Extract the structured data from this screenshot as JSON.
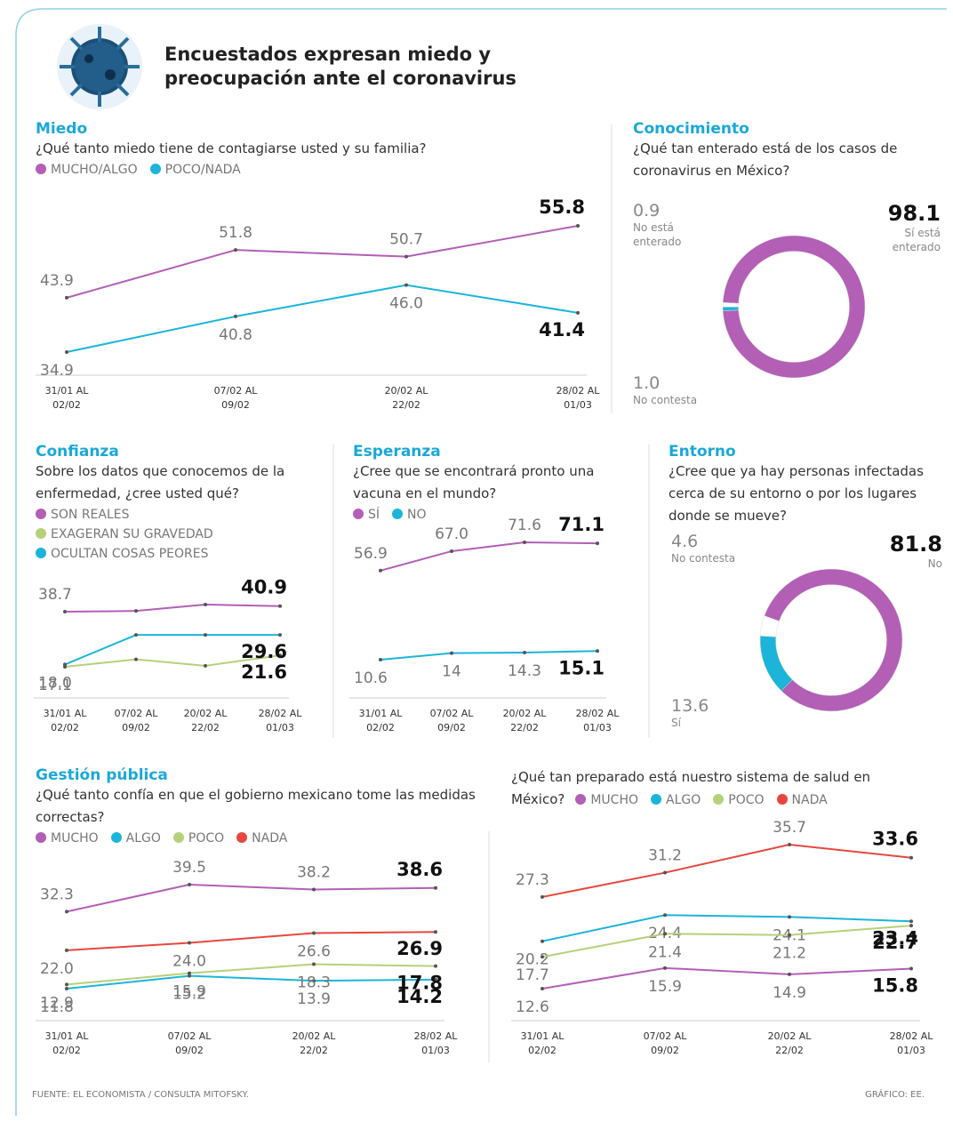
{
  "header": {
    "title": "Encuestados expresan miedo y preocupación ante el coronavirus"
  },
  "chart_data": [
    {
      "type": "line",
      "title": "Miedo",
      "subtitle": "¿Qué tanto miedo tiene de contagiarse usted y su familia?",
      "categories": [
        "31/01 AL 02/02",
        "07/02 AL 09/02",
        "20/02 AL 22/02",
        "28/02 AL 01/03"
      ],
      "series": [
        {
          "name": "MUCHO/ALGO",
          "color": "#b35fb6",
          "values": [
            43.9,
            51.8,
            50.7,
            55.8
          ],
          "value_labels": [
            "43.9",
            "51.8",
            "50.7",
            "55.8"
          ]
        },
        {
          "name": "POCO/NADA",
          "color": "#1cb5d9",
          "values": [
            34.9,
            40.8,
            46.0,
            41.4
          ],
          "value_labels": [
            "34.9",
            "40.8",
            "46.0",
            "41.4"
          ]
        }
      ]
    },
    {
      "type": "donut",
      "title": "Conocimiento",
      "subtitle": "¿Qué tan enterado está de los casos de coronavirus en México?",
      "categories": [
        "Sí está enterado",
        "No está enterado",
        "No contesta"
      ],
      "values": [
        98.1,
        0.9,
        1.0
      ],
      "value_labels": [
        "98.1",
        "0.9",
        "1.0"
      ],
      "colors": [
        "#b35fb6",
        "#1cb5d9",
        "#ffffff"
      ]
    },
    {
      "type": "line",
      "title": "Confianza",
      "subtitle": "Sobre los datos que conocemos de la enfermedad, ¿cree usted qué?",
      "categories": [
        "31/01 AL 02/02",
        "07/02 AL 09/02",
        "20/02 AL 22/02",
        "28/02 AL 01/03"
      ],
      "series": [
        {
          "name": "SON REALES",
          "color": "#b35fb6",
          "values": [
            38.7,
            39.0,
            41.5,
            40.9
          ],
          "value_labels": [
            "38.7",
            null,
            null,
            "40.9"
          ]
        },
        {
          "name": "EXAGERAN SU GRAVEDAD",
          "color": "#b5d17a",
          "values": [
            17.1,
            20.0,
            17.5,
            21.6
          ],
          "value_labels": [
            "17.1",
            null,
            null,
            "21.6"
          ]
        },
        {
          "name": "OCULTAN COSAS PEORES",
          "color": "#1cb5d9",
          "values": [
            18.0,
            29.6,
            29.6,
            29.6
          ],
          "value_labels": [
            "18.0",
            null,
            null,
            "29.6"
          ]
        }
      ]
    },
    {
      "type": "line",
      "title": "Esperanza",
      "subtitle": "¿Cree que se encontrará pronto una vacuna en el mundo?",
      "categories": [
        "31/01 AL 02/02",
        "07/02 AL 09/02",
        "20/02 AL 22/02",
        "28/02 AL 01/03"
      ],
      "series": [
        {
          "name": "SÍ",
          "color": "#b35fb6",
          "values": [
            56.9,
            67.0,
            71.6,
            71.1
          ],
          "value_labels": [
            "56.9",
            "67.0",
            "71.6",
            "71.1"
          ]
        },
        {
          "name": "NO",
          "color": "#1cb5d9",
          "values": [
            10.6,
            14,
            14.3,
            15.1
          ],
          "value_labels": [
            "10.6",
            "14",
            "14.3",
            "15.1"
          ]
        }
      ]
    },
    {
      "type": "donut",
      "title": "Entorno",
      "subtitle": "¿Cree que ya hay personas infectadas cerca de su entorno o por los lugares donde se mueve?",
      "categories": [
        "No",
        "Sí",
        "No contesta"
      ],
      "values": [
        81.8,
        13.6,
        4.6
      ],
      "value_labels": [
        "81.8",
        "13.6",
        "4.6"
      ],
      "colors": [
        "#b35fb6",
        "#1cb5d9",
        "#ffffff"
      ]
    },
    {
      "type": "line",
      "title": "Gestión pública",
      "subtitle": "¿Qué tanto confía en que el gobierno mexicano tome las medidas correctas?",
      "categories": [
        "31/01 AL 02/02",
        "07/02 AL 09/02",
        "20/02 AL 22/02",
        "28/02 AL 01/03"
      ],
      "series": [
        {
          "name": "MUCHO",
          "color": "#b35fb6",
          "values": [
            32.3,
            39.5,
            38.2,
            38.6
          ],
          "value_labels": [
            "32.3",
            "39.5",
            "38.2",
            "38.6"
          ]
        },
        {
          "name": "ALGO",
          "color": "#1cb5d9",
          "values": [
            11.8,
            15.2,
            13.9,
            14.2
          ],
          "value_labels": [
            "11.8",
            "15.2",
            "13.9",
            "14.2"
          ]
        },
        {
          "name": "POCO",
          "color": "#b5d17a",
          "values": [
            12.9,
            15.9,
            18.3,
            17.8
          ],
          "value_labels": [
            "12.9",
            "15.9",
            "18.3",
            "17.8"
          ]
        },
        {
          "name": "NADA",
          "color": "#e7473e",
          "values": [
            22.0,
            24.0,
            26.6,
            26.9
          ],
          "value_labels": [
            "22.0",
            "24.0",
            "26.6",
            "26.9"
          ]
        }
      ]
    },
    {
      "type": "line",
      "subtitle": "¿Qué tan preparado está nuestro sistema de salud en México?",
      "categories": [
        "31/01 AL 02/02",
        "07/02 AL 09/02",
        "20/02 AL 22/02",
        "28/02 AL 01/03"
      ],
      "series": [
        {
          "name": "MUCHO",
          "color": "#b35fb6",
          "values": [
            12.6,
            15.9,
            14.9,
            15.8
          ],
          "value_labels": [
            "12.6",
            "15.9",
            "14.9",
            "15.8"
          ]
        },
        {
          "name": "ALGO",
          "color": "#1cb5d9",
          "values": [
            20.2,
            24.4,
            24.1,
            23.4
          ],
          "value_labels": [
            "20.2",
            "24.4",
            "24.1",
            "23.4"
          ]
        },
        {
          "name": "POCO",
          "color": "#b5d17a",
          "values": [
            17.7,
            21.4,
            21.2,
            22.7
          ],
          "value_labels": [
            "17.7",
            "21.4",
            "21.2",
            "22.7"
          ]
        },
        {
          "name": "NADA",
          "color": "#e7473e",
          "values": [
            27.3,
            31.2,
            35.7,
            33.6
          ],
          "value_labels": [
            "27.3",
            "31.2",
            "35.7",
            "33.6"
          ]
        }
      ]
    }
  ],
  "footer": {
    "source": "FUENTE: EL ECONOMISTA / CONSULTA MITOFSKY.",
    "credit": "GRÁFICO: EE."
  }
}
